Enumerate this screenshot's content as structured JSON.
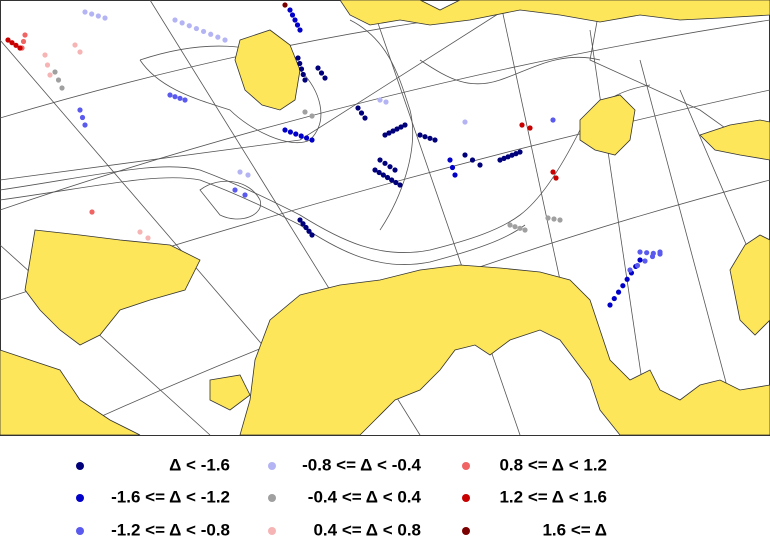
{
  "legend": {
    "items": [
      {
        "label": "Δ < -1.6",
        "color": "#00007a"
      },
      {
        "label": "-1.6 <= Δ < -1.2",
        "color": "#0000c8"
      },
      {
        "label": "-1.2 <= Δ < -0.8",
        "color": "#5a5aee"
      },
      {
        "label": "-0.8 <= Δ < -0.4",
        "color": "#b4b4f4"
      },
      {
        "label": "-0.4 <= Δ < 0.4",
        "color": "#a0a0a0"
      },
      {
        "label": "0.4 <= Δ < 0.8",
        "color": "#f6b4b4"
      },
      {
        "label": "0.8 <= Δ < 1.2",
        "color": "#f06464"
      },
      {
        "label": "1.2 <= Δ < 1.6",
        "color": "#c80000"
      },
      {
        "label": "1.6 <= Δ",
        "color": "#7a0000"
      }
    ]
  }
}
